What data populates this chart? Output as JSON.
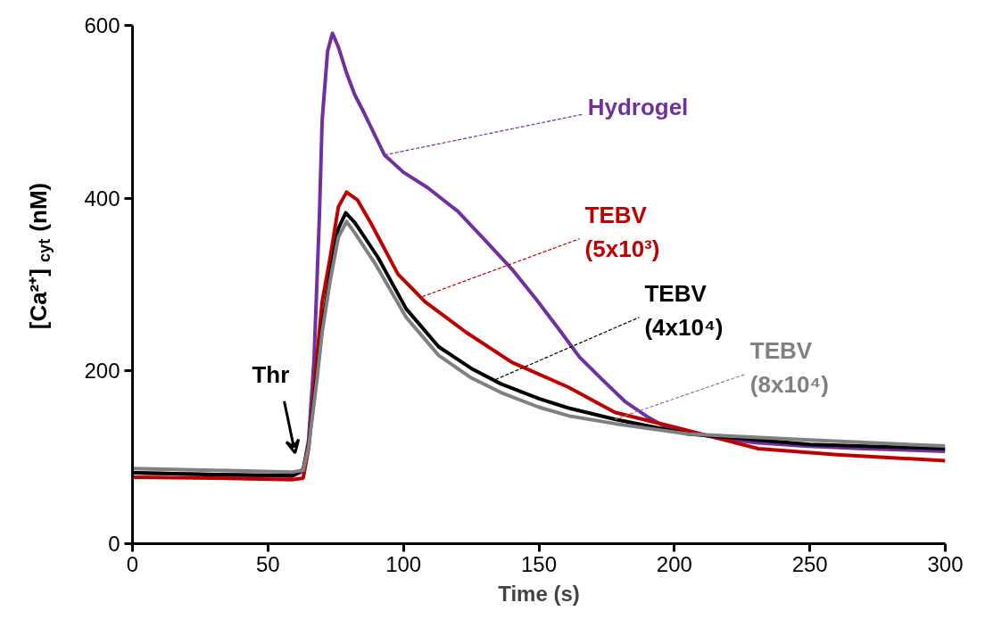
{
  "chart_data": {
    "type": "line",
    "xlabel": "Time (s)",
    "ylabel": "[Ca²⁺]$_{cyt}$ (nM)",
    "xlim": [
      0,
      300
    ],
    "ylim": [
      0,
      600
    ],
    "xticks": [
      0,
      50,
      100,
      150,
      200,
      250,
      300
    ],
    "yticks": [
      0,
      200,
      400,
      600
    ],
    "grid": false,
    "marker": "none",
    "line_style": "solid",
    "series": [
      {
        "color": "#7030a0",
        "x": [
          0,
          30,
          59,
          63,
          65,
          67,
          69,
          70,
          72,
          73.8,
          76,
          79,
          82,
          85.6,
          93,
          100,
          109,
          120,
          129,
          140,
          149,
          157,
          165,
          174,
          182,
          190,
          198,
          215,
          230,
          248,
          270,
          300
        ],
        "values": [
          82,
          80,
          78,
          84,
          120,
          213,
          380,
          490,
          570,
          591,
          575,
          545,
          520,
          498,
          450,
          430,
          412,
          385,
          355,
          318,
          283,
          250,
          216,
          188,
          164,
          147,
          133,
          123,
          117,
          113,
          110,
          107
        ]
      },
      {
        "color": "#c00000",
        "x": [
          0,
          30,
          59,
          63,
          65,
          68,
          70,
          73,
          76,
          79,
          83,
          88,
          98,
          108,
          123,
          140,
          161,
          178,
          205,
          231,
          260,
          300
        ],
        "values": [
          77,
          76,
          74,
          76,
          110,
          213,
          280,
          332,
          390,
          407,
          398,
          371,
          312,
          280,
          245,
          210,
          181,
          152,
          131,
          110,
          103,
          96
        ]
      },
      {
        "color": "#000000",
        "x": [
          0,
          30,
          59,
          63,
          65,
          68,
          70,
          73,
          76,
          78.7,
          82,
          90.5,
          101,
          113,
          125,
          136,
          150,
          161,
          178,
          205,
          250,
          300
        ],
        "values": [
          82,
          80,
          79,
          86,
          115,
          193,
          250,
          312,
          365,
          383,
          372,
          332,
          272,
          228,
          203,
          185,
          168,
          157,
          144,
          127,
          115,
          110
        ]
      },
      {
        "color": "#808080",
        "x": [
          0,
          30,
          59,
          63,
          65,
          68,
          70,
          73,
          76,
          79,
          82,
          90,
          101,
          113,
          125,
          136,
          150,
          161,
          178,
          205,
          250,
          300
        ],
        "values": [
          87,
          85,
          83,
          85,
          112,
          188,
          245,
          305,
          355,
          373,
          360,
          322,
          262,
          218,
          192,
          175,
          158,
          148,
          139,
          127,
          120,
          113
        ]
      }
    ],
    "annotations": [
      {
        "text": "Hydrogel",
        "x": 93,
        "y": 450
      },
      {
        "text": "TEBV\n(5x10³)",
        "x": 107,
        "y": 286
      },
      {
        "text": "TEBV\n(4x10⁴)",
        "x": 134,
        "y": 190
      },
      {
        "text": "TEBV\n(8x10⁴)",
        "x": 178,
        "y": 144
      },
      "Thr"
    ]
  }
}
